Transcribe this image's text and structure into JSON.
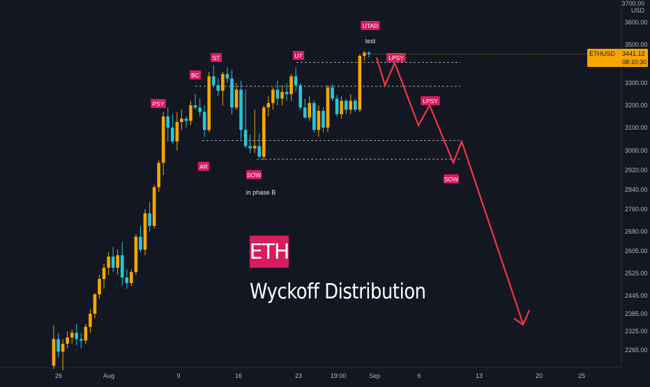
{
  "scale": {
    "top_label": "3700.00",
    "currency": "USD"
  },
  "price_tag": {
    "symbol": "ETHUSD",
    "price": "3441.12",
    "countdown": "08:10:30",
    "color": "#f7a600"
  },
  "colors": {
    "background": "#131722",
    "bull": "#f7a600",
    "bear": "#26c6da",
    "annotation_box": "#d81c5e",
    "projection": "#f23645",
    "level_lines": "#c9c9c9"
  },
  "overlay": {
    "badge": "ETH",
    "title": "Wyckoff Distribution"
  },
  "chart_data": {
    "type": "candlestick",
    "symbol": "ETHUSD",
    "interval": "8H",
    "y_axis": {
      "ticks": [
        3600,
        3500,
        3400,
        3300,
        3200,
        3100,
        3000,
        2920,
        2840,
        2760,
        2680,
        2605,
        2525,
        2445,
        2385,
        2325,
        2265
      ],
      "tick_labels": [
        "3600.00",
        "3500.00",
        "3400.00",
        "3300.00",
        "3200.00",
        "3100.00",
        "3000.00",
        "2920.00",
        "2840.00",
        "2760.00",
        "2680.00",
        "2605.00",
        "2525.00",
        "2445.00",
        "2385.00",
        "2325.00",
        "2265.00"
      ]
    },
    "x_axis": {
      "tick_labels": [
        "26",
        "Aug",
        "9",
        "16",
        "23",
        "19:00",
        "Sep",
        "6",
        "13",
        "20",
        "25"
      ]
    },
    "candles": [
      [
        2215,
        2345,
        2205,
        2300
      ],
      [
        2300,
        2320,
        2240,
        2260
      ],
      [
        2260,
        2300,
        2200,
        2285
      ],
      [
        2285,
        2325,
        2270,
        2305
      ],
      [
        2305,
        2330,
        2285,
        2320
      ],
      [
        2320,
        2350,
        2280,
        2300
      ],
      [
        2300,
        2320,
        2270,
        2295
      ],
      [
        2295,
        2350,
        2285,
        2340
      ],
      [
        2340,
        2400,
        2320,
        2385
      ],
      [
        2385,
        2455,
        2370,
        2450
      ],
      [
        2450,
        2520,
        2435,
        2505
      ],
      [
        2505,
        2560,
        2470,
        2545
      ],
      [
        2545,
        2600,
        2520,
        2585
      ],
      [
        2585,
        2620,
        2530,
        2545
      ],
      [
        2545,
        2610,
        2520,
        2590
      ],
      [
        2590,
        2640,
        2480,
        2510
      ],
      [
        2510,
        2540,
        2470,
        2490
      ],
      [
        2490,
        2540,
        2480,
        2530
      ],
      [
        2530,
        2670,
        2520,
        2660
      ],
      [
        2660,
        2700,
        2600,
        2610
      ],
      [
        2610,
        2760,
        2590,
        2745
      ],
      [
        2745,
        2790,
        2680,
        2700
      ],
      [
        2700,
        2860,
        2690,
        2850
      ],
      [
        2850,
        2960,
        2830,
        2950
      ],
      [
        2950,
        3170,
        2900,
        3150
      ],
      [
        3150,
        3190,
        3040,
        3100
      ],
      [
        3100,
        3160,
        3030,
        3040
      ],
      [
        3040,
        3170,
        3000,
        3125
      ],
      [
        3125,
        3180,
        3090,
        3140
      ],
      [
        3140,
        3150,
        3100,
        3130
      ],
      [
        3130,
        3220,
        3110,
        3200
      ],
      [
        3200,
        3250,
        3180,
        3190
      ],
      [
        3190,
        3230,
        3150,
        3170
      ],
      [
        3170,
        3200,
        3060,
        3090
      ],
      [
        3090,
        3350,
        3080,
        3330
      ],
      [
        3330,
        3380,
        3280,
        3290
      ],
      [
        3290,
        3320,
        3240,
        3265
      ],
      [
        3265,
        3350,
        3200,
        3340
      ],
      [
        3340,
        3370,
        3300,
        3320
      ],
      [
        3320,
        3360,
        3160,
        3190
      ],
      [
        3190,
        3300,
        3180,
        3270
      ],
      [
        3270,
        3310,
        3050,
        3090
      ],
      [
        3090,
        3270,
        3010,
        3020
      ],
      [
        3020,
        3070,
        2990,
        3010
      ],
      [
        3010,
        3180,
        2990,
        3020
      ],
      [
        3020,
        3075,
        2970,
        2975
      ],
      [
        2975,
        3200,
        2960,
        3190
      ],
      [
        3190,
        3240,
        3150,
        3210
      ],
      [
        3210,
        3280,
        3180,
        3270
      ],
      [
        3270,
        3310,
        3200,
        3230
      ],
      [
        3230,
        3290,
        3200,
        3260
      ],
      [
        3260,
        3300,
        3220,
        3250
      ],
      [
        3250,
        3340,
        3220,
        3330
      ],
      [
        3330,
        3370,
        3260,
        3290
      ],
      [
        3290,
        3300,
        3180,
        3190
      ],
      [
        3190,
        3230,
        3140,
        3145
      ],
      [
        3145,
        3240,
        3130,
        3210
      ],
      [
        3210,
        3220,
        3080,
        3090
      ],
      [
        3090,
        3200,
        3060,
        3175
      ],
      [
        3175,
        3190,
        3080,
        3100
      ],
      [
        3100,
        3290,
        3080,
        3280
      ],
      [
        3280,
        3295,
        3220,
        3230
      ],
      [
        3230,
        3245,
        3150,
        3160
      ],
      [
        3160,
        3240,
        3140,
        3220
      ],
      [
        3220,
        3230,
        3160,
        3180
      ],
      [
        3180,
        3250,
        3160,
        3220
      ],
      [
        3220,
        3230,
        3170,
        3180
      ],
      [
        3180,
        3440,
        3170,
        3430
      ],
      [
        3430,
        3460,
        3400,
        3450
      ],
      [
        3450,
        3460,
        3420,
        3441.12
      ]
    ],
    "levels": [
      3392,
      3285,
      3044,
      2965
    ],
    "labels": [
      {
        "text": "PSY",
        "style": "box"
      },
      {
        "text": "BC",
        "style": "box"
      },
      {
        "text": "ST",
        "style": "box"
      },
      {
        "text": "AR",
        "style": "box"
      },
      {
        "text": "SOW",
        "style": "box"
      },
      {
        "text": "in phase B",
        "style": "plain"
      },
      {
        "text": "UT",
        "style": "box"
      },
      {
        "text": "UTAD",
        "style": "box"
      },
      {
        "text": "test",
        "style": "plain"
      },
      {
        "text": "LPSY",
        "style": "box"
      },
      {
        "text": "LPSY",
        "style": "box"
      },
      {
        "text": "SOW",
        "style": "box"
      }
    ],
    "projection_path": [
      3420,
      3290,
      3390,
      3110,
      3200,
      2950,
      3040,
      2350
    ]
  }
}
